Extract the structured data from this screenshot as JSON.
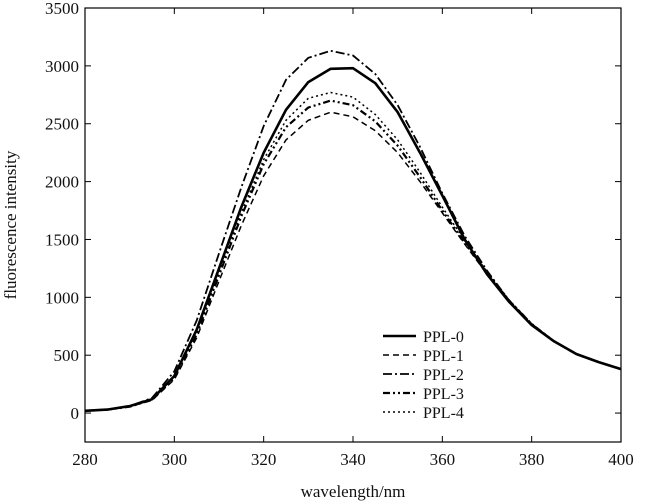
{
  "chart_data": {
    "type": "line",
    "title": "",
    "xlabel": "wavelength/nm",
    "ylabel": "fluorescence intensity",
    "xlim": [
      280,
      400
    ],
    "ylim": [
      -250,
      3500
    ],
    "xticks": [
      280,
      300,
      320,
      340,
      360,
      380,
      400
    ],
    "yticks": [
      0,
      500,
      1000,
      1500,
      2000,
      2500,
      3000,
      3500
    ],
    "grid": false,
    "legend_position": "bottom-right",
    "x": [
      280,
      285,
      290,
      295,
      300,
      305,
      310,
      315,
      320,
      325,
      330,
      335,
      340,
      345,
      350,
      355,
      360,
      365,
      370,
      375,
      380,
      385,
      390,
      395,
      400
    ],
    "series": [
      {
        "name": "PPL-0",
        "style": "solid",
        "values": [
          20,
          30,
          60,
          120,
          320,
          720,
          1250,
          1780,
          2250,
          2620,
          2860,
          2975,
          2980,
          2850,
          2600,
          2250,
          1880,
          1500,
          1200,
          960,
          760,
          620,
          510,
          440,
          380
        ]
      },
      {
        "name": "PPL-1",
        "style": "dashed",
        "values": [
          20,
          30,
          55,
          110,
          290,
          650,
          1140,
          1620,
          2050,
          2360,
          2530,
          2600,
          2560,
          2440,
          2250,
          2000,
          1730,
          1460,
          1200,
          960,
          760,
          620,
          510,
          440,
          380
        ]
      },
      {
        "name": "PPL-2",
        "style": "dashdot",
        "values": [
          20,
          30,
          60,
          130,
          360,
          800,
          1380,
          1950,
          2480,
          2880,
          3070,
          3130,
          3090,
          2930,
          2660,
          2300,
          1900,
          1530,
          1230,
          970,
          770,
          620,
          510,
          440,
          380
        ]
      },
      {
        "name": "PPL-3",
        "style": "dashdotdot",
        "values": [
          20,
          30,
          55,
          115,
          300,
          680,
          1190,
          1700,
          2150,
          2470,
          2640,
          2700,
          2660,
          2520,
          2310,
          2040,
          1750,
          1470,
          1210,
          970,
          770,
          620,
          510,
          440,
          380
        ]
      },
      {
        "name": "PPL-4",
        "style": "dotted",
        "values": [
          20,
          30,
          55,
          118,
          305,
          690,
          1210,
          1730,
          2190,
          2530,
          2720,
          2770,
          2730,
          2580,
          2360,
          2080,
          1780,
          1490,
          1220,
          975,
          770,
          620,
          510,
          440,
          380
        ]
      }
    ]
  }
}
